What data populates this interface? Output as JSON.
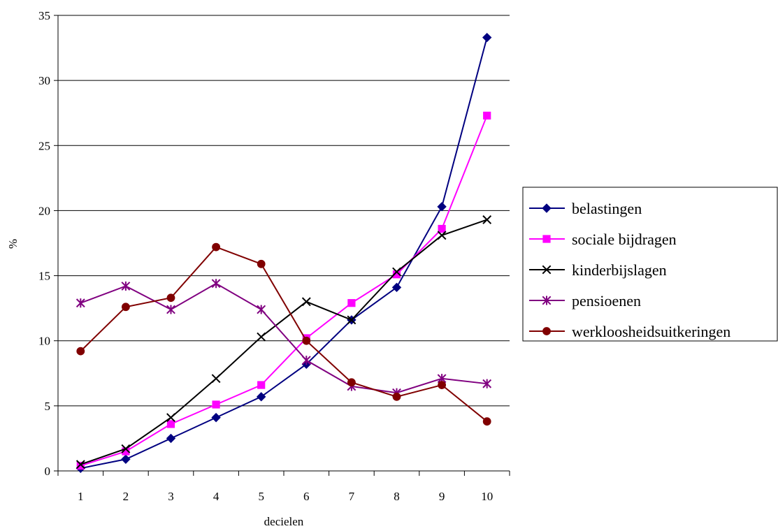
{
  "chart_data": {
    "type": "line",
    "xlabel": "decielen",
    "ylabel": "%",
    "categories": [
      "1",
      "2",
      "3",
      "4",
      "5",
      "6",
      "7",
      "8",
      "9",
      "10"
    ],
    "ylim": [
      0,
      35
    ],
    "yticks": [
      0,
      5,
      10,
      15,
      20,
      25,
      30,
      35
    ],
    "grid": true,
    "legend_position": "right",
    "series": [
      {
        "name": "belastingen",
        "color": "#000080",
        "marker": "diamond",
        "values": [
          0.2,
          0.9,
          2.5,
          4.1,
          5.7,
          8.2,
          11.6,
          14.1,
          20.3,
          33.3
        ]
      },
      {
        "name": "sociale bijdragen",
        "color": "#ff00ff",
        "marker": "square",
        "values": [
          0.4,
          1.5,
          3.6,
          5.1,
          6.6,
          10.2,
          12.9,
          15.1,
          18.6,
          27.3
        ]
      },
      {
        "name": "kinderbijslagen",
        "color": "#000000",
        "marker": "x",
        "values": [
          0.5,
          1.7,
          4.1,
          7.1,
          10.3,
          13.0,
          11.6,
          15.3,
          18.1,
          19.3
        ]
      },
      {
        "name": "pensioenen",
        "color": "#800080",
        "marker": "star",
        "values": [
          12.9,
          14.2,
          12.4,
          14.4,
          12.4,
          8.5,
          6.5,
          6.0,
          7.1,
          6.7
        ]
      },
      {
        "name": "werkloosheidsuitkeringen",
        "color": "#800000",
        "marker": "circle",
        "values": [
          9.2,
          12.6,
          13.3,
          17.2,
          15.9,
          10.0,
          6.8,
          5.7,
          6.6,
          3.8
        ]
      }
    ]
  }
}
